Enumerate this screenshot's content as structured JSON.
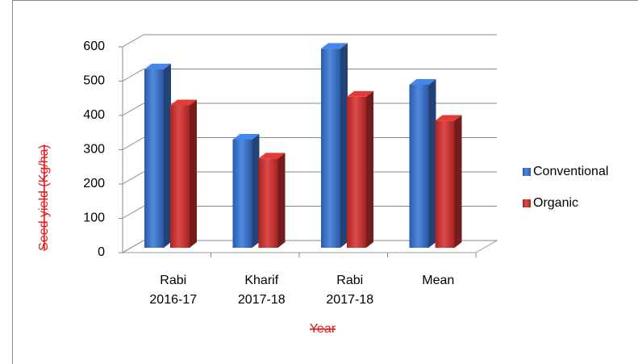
{
  "chart_data": {
    "type": "bar3d",
    "categories": [
      "Rabi 2016-17",
      "Kharif 2017-18",
      "Rabi 2017-18",
      "Mean"
    ],
    "series": [
      {
        "name": "Conventional",
        "color": "#3a6fc4",
        "values": [
          525,
          320,
          585,
          480
        ]
      },
      {
        "name": "Organic",
        "color": "#c0302f",
        "values": [
          420,
          265,
          445,
          375
        ]
      }
    ],
    "y_label": "Seed yield (Kg/ha)",
    "x_label": "Year",
    "ylim": [
      0,
      600
    ],
    "yticks": [
      0,
      100,
      200,
      300,
      400,
      500,
      600
    ],
    "grid": true,
    "legend": "right"
  }
}
